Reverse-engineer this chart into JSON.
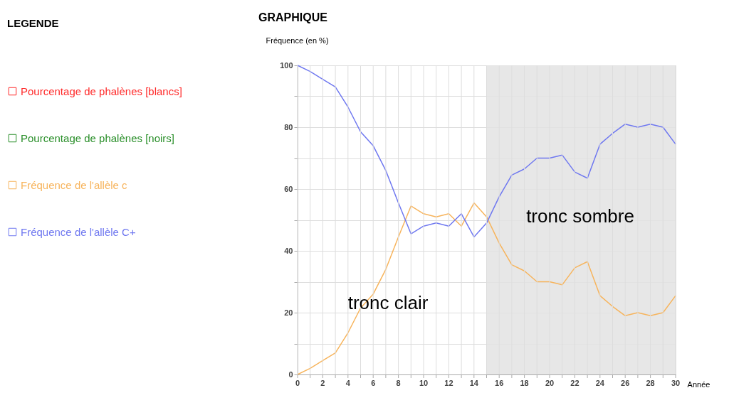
{
  "chart_data": {
    "type": "line",
    "title": "GRAPHIQUE",
    "legend_title": "LEGENDE",
    "xlabel": "Année",
    "ylabel": "Fréquence (en %)",
    "x": [
      0,
      1,
      2,
      3,
      4,
      5,
      6,
      7,
      8,
      9,
      10,
      11,
      12,
      13,
      14,
      15,
      16,
      17,
      18,
      19,
      20,
      21,
      22,
      23,
      24,
      25,
      26,
      27,
      28,
      29,
      30
    ],
    "series": [
      {
        "name": "Pourcentage de phalènes [blancs]",
        "color": "#ff2a2a",
        "values": [
          null,
          null,
          null,
          null,
          null,
          null,
          null,
          null,
          null,
          null,
          null,
          null,
          null,
          null,
          null,
          null,
          null,
          null,
          null,
          null,
          null,
          null,
          null,
          null,
          null,
          null,
          null,
          null,
          null,
          null,
          null
        ]
      },
      {
        "name": "Pourcentage de phalènes [noirs]",
        "color": "#2a8f2a",
        "values": [
          null,
          null,
          null,
          null,
          null,
          null,
          null,
          null,
          null,
          null,
          null,
          null,
          null,
          null,
          null,
          null,
          null,
          null,
          null,
          null,
          null,
          null,
          null,
          null,
          null,
          null,
          null,
          null,
          null,
          null,
          null
        ]
      },
      {
        "name": "Fréquence de l'allèle c",
        "color": "#f7b45c",
        "values": [
          0,
          2,
          4.5,
          7,
          13.5,
          21.5,
          26,
          34,
          44.5,
          54.5,
          52,
          51,
          52,
          48,
          55.5,
          51,
          42.5,
          35.5,
          33.5,
          30,
          30,
          29,
          34.5,
          36.5,
          25.5,
          22,
          19,
          20,
          19,
          20,
          25.5
        ]
      },
      {
        "name": "Fréquence de l'allèle C+",
        "color": "#6f78f0",
        "values": [
          100,
          98,
          95.5,
          93,
          86.5,
          78.5,
          74,
          66,
          55.5,
          45.5,
          48,
          49,
          48,
          52,
          44.5,
          49,
          57.5,
          64.5,
          66.5,
          70,
          70,
          71,
          65.5,
          63.5,
          74.5,
          78,
          81,
          80,
          81,
          80,
          74.5
        ]
      }
    ],
    "xlim": [
      0,
      30
    ],
    "xticks": [
      0,
      {
        "value": 1,
        "label": null
      },
      2,
      {
        "value": 3,
        "label": null
      },
      4,
      {
        "value": 5,
        "label": null
      },
      6,
      {
        "value": 7,
        "label": null
      },
      8,
      {
        "value": 9,
        "label": null
      },
      10,
      {
        "value": 11,
        "label": null
      },
      12,
      {
        "value": 13,
        "label": null
      },
      14,
      {
        "value": 15,
        "label": null
      },
      16,
      {
        "value": 17,
        "label": null
      },
      18,
      {
        "value": 19,
        "label": null
      },
      20,
      {
        "value": 21,
        "label": null
      },
      22,
      {
        "value": 23,
        "label": null
      },
      24,
      {
        "value": 25,
        "label": null
      },
      26,
      {
        "value": 27,
        "label": null
      },
      28,
      {
        "value": 29,
        "label": null
      },
      30
    ],
    "ylim": [
      0,
      100
    ],
    "yticks": [
      0,
      {
        "value": 10,
        "label": null
      },
      20,
      {
        "value": 30,
        "label": null
      },
      40,
      {
        "value": 50,
        "label": null
      },
      60,
      {
        "value": 70,
        "label": null
      },
      80,
      {
        "value": 90,
        "label": null
      },
      100
    ],
    "bands": [
      {
        "axis": "x",
        "from": 15,
        "to": 30,
        "color": "#e3e3e3"
      }
    ],
    "annotations": [
      "tronc clair",
      "tronc sombre"
    ],
    "grid": true,
    "legend": "left",
    "marker": "none",
    "line_style": "solid"
  }
}
